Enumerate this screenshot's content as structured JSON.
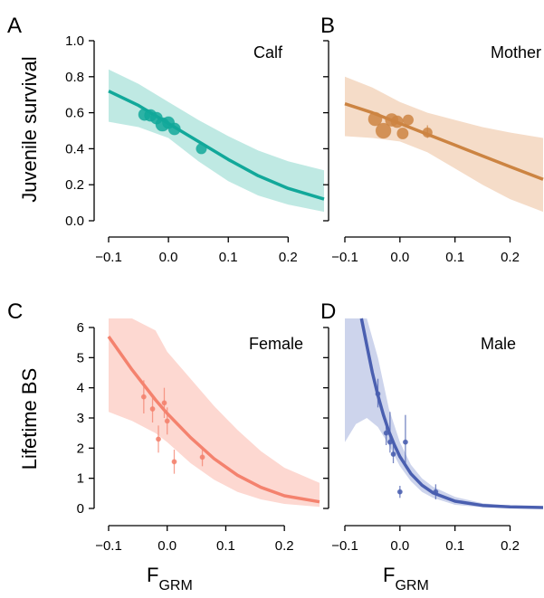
{
  "figure": {
    "ylabel_top": "Juvenile survival",
    "ylabel_bottom": "Lifetime BS",
    "xlabel_main": "F",
    "xlabel_sub": "GRM"
  },
  "chart_data": [
    {
      "panel": "A",
      "title": "Calf",
      "type": "scatter",
      "color": "#12a89a",
      "band_color": "#bfe9e3",
      "xlim": [
        -0.1,
        0.26
      ],
      "ylim": [
        0,
        1.0
      ],
      "xticks": [
        -0.1,
        0.0,
        0.1,
        0.2
      ],
      "xtick_labels": [
        "−0.1",
        "0.0",
        "0.1",
        "0.2"
      ],
      "yticks": [
        0,
        0.2,
        0.4,
        0.6,
        0.8,
        1.0
      ],
      "ytick_labels": [
        "0.0",
        "0.2",
        "0.4",
        "0.6",
        "0.8",
        "1.0"
      ],
      "fit": {
        "x": [
          -0.1,
          -0.05,
          0.0,
          0.05,
          0.1,
          0.15,
          0.2,
          0.26
        ],
        "y": [
          0.72,
          0.64,
          0.54,
          0.44,
          0.34,
          0.25,
          0.18,
          0.12
        ]
      },
      "band": {
        "x": [
          -0.1,
          -0.05,
          0.0,
          0.05,
          0.1,
          0.15,
          0.2,
          0.26
        ],
        "lower": [
          0.55,
          0.52,
          0.46,
          0.33,
          0.22,
          0.14,
          0.09,
          0.05
        ],
        "upper": [
          0.84,
          0.76,
          0.66,
          0.56,
          0.47,
          0.39,
          0.33,
          0.28
        ]
      },
      "points": [
        {
          "x": -0.04,
          "y": 0.59,
          "size": 3
        },
        {
          "x": -0.03,
          "y": 0.585,
          "size": 3
        },
        {
          "x": -0.02,
          "y": 0.57,
          "size": 3
        },
        {
          "x": -0.01,
          "y": 0.535,
          "size": 3.4
        },
        {
          "x": 0.0,
          "y": 0.545,
          "size": 3
        },
        {
          "x": 0.01,
          "y": 0.51,
          "size": 3
        },
        {
          "x": 0.055,
          "y": 0.4,
          "size": 2.6
        }
      ]
    },
    {
      "panel": "B",
      "title": "Mother",
      "type": "scatter",
      "color": "#cc8442",
      "band_color": "#f5dcc8",
      "xlim": [
        -0.1,
        0.26
      ],
      "ylim": [
        0,
        1.0
      ],
      "xticks": [
        -0.1,
        0.0,
        0.1,
        0.2
      ],
      "xtick_labels": [
        "−0.1",
        "0.0",
        "0.1",
        "0.2"
      ],
      "yticks": [
        0,
        0.2,
        0.4,
        0.6,
        0.8,
        1.0
      ],
      "fit": {
        "x": [
          -0.1,
          -0.05,
          0.0,
          0.05,
          0.1,
          0.15,
          0.2,
          0.26
        ],
        "y": [
          0.65,
          0.6,
          0.54,
          0.48,
          0.42,
          0.36,
          0.3,
          0.23
        ]
      },
      "band": {
        "x": [
          -0.1,
          -0.05,
          0.0,
          0.05,
          0.1,
          0.15,
          0.2,
          0.26
        ],
        "lower": [
          0.47,
          0.46,
          0.44,
          0.38,
          0.29,
          0.2,
          0.12,
          0.05
        ],
        "upper": [
          0.8,
          0.74,
          0.66,
          0.6,
          0.56,
          0.52,
          0.49,
          0.46
        ]
      },
      "points": [
        {
          "x": -0.045,
          "y": 0.565,
          "size": 3.4
        },
        {
          "x": -0.03,
          "y": 0.5,
          "size": 3.8
        },
        {
          "x": -0.015,
          "y": 0.56,
          "size": 3.2
        },
        {
          "x": -0.005,
          "y": 0.55,
          "size": 3
        },
        {
          "x": 0.005,
          "y": 0.485,
          "size": 2.8
        },
        {
          "x": 0.015,
          "y": 0.56,
          "size": 2.6
        },
        {
          "x": 0.05,
          "y": 0.49,
          "size": 2.4,
          "err": [
            0.46,
            0.53
          ]
        }
      ]
    },
    {
      "panel": "C",
      "title": "Female",
      "type": "scatter",
      "color": "#f4826e",
      "band_color": "#fdd8d1",
      "xlim": [
        -0.1,
        0.26
      ],
      "ylim": [
        0,
        6
      ],
      "xticks": [
        -0.1,
        0.0,
        0.1,
        0.2
      ],
      "xtick_labels": [
        "−0.1",
        "0.0",
        "0.1",
        "0.2"
      ],
      "yticks": [
        0,
        1,
        2,
        3,
        4,
        5,
        6
      ],
      "ytick_labels": [
        "0",
        "1",
        "2",
        "3",
        "4",
        "5",
        "6"
      ],
      "fit": {
        "x": [
          -0.1,
          -0.06,
          -0.02,
          0.0,
          0.04,
          0.08,
          0.12,
          0.16,
          0.2,
          0.26
        ],
        "y": [
          5.7,
          4.6,
          3.6,
          3.15,
          2.35,
          1.65,
          1.1,
          0.7,
          0.42,
          0.22
        ]
      },
      "band": {
        "x": [
          -0.1,
          -0.06,
          -0.02,
          0.0,
          0.04,
          0.08,
          0.12,
          0.16,
          0.2,
          0.26
        ],
        "lower": [
          3.2,
          2.9,
          2.5,
          2.2,
          1.5,
          0.95,
          0.55,
          0.3,
          0.15,
          0.05
        ],
        "upper": [
          6.3,
          6.3,
          5.9,
          5.2,
          4.3,
          3.4,
          2.6,
          1.9,
          1.35,
          0.85
        ]
      },
      "points": [
        {
          "x": -0.04,
          "y": 3.7,
          "err": [
            3.15,
            4.25
          ]
        },
        {
          "x": -0.025,
          "y": 3.3,
          "err": [
            2.85,
            3.75
          ]
        },
        {
          "x": -0.015,
          "y": 2.3,
          "err": [
            1.85,
            2.75
          ]
        },
        {
          "x": -0.005,
          "y": 3.5,
          "err": [
            3.0,
            4.0
          ]
        },
        {
          "x": 0.0,
          "y": 2.9,
          "err": [
            2.45,
            3.35
          ]
        },
        {
          "x": 0.012,
          "y": 1.55,
          "err": [
            1.15,
            1.95
          ]
        },
        {
          "x": 0.06,
          "y": 1.7,
          "err": [
            1.4,
            2.0
          ]
        }
      ]
    },
    {
      "panel": "D",
      "title": "Male",
      "type": "scatter",
      "color": "#4a5fb0",
      "band_color": "#cdd4ec",
      "xlim": [
        -0.1,
        0.26
      ],
      "ylim": [
        0,
        6
      ],
      "xticks": [
        -0.1,
        0.0,
        0.1,
        0.2
      ],
      "xtick_labels": [
        "−0.1",
        "0.0",
        "0.1",
        "0.2"
      ],
      "yticks": [
        0,
        1,
        2,
        3,
        4,
        5,
        6
      ],
      "fit": {
        "x": [
          -0.07,
          -0.06,
          -0.05,
          -0.04,
          -0.03,
          -0.02,
          -0.01,
          0.0,
          0.02,
          0.04,
          0.06,
          0.1,
          0.15,
          0.2,
          0.26
        ],
        "y": [
          6.3,
          5.4,
          4.5,
          3.75,
          3.1,
          2.55,
          2.1,
          1.72,
          1.15,
          0.77,
          0.52,
          0.24,
          0.1,
          0.05,
          0.03
        ]
      },
      "band": {
        "x": [
          -0.1,
          -0.09,
          -0.08,
          -0.06,
          -0.04,
          -0.02,
          0.0,
          0.02,
          0.04,
          0.06,
          0.1,
          0.15,
          0.2,
          0.26
        ],
        "lower": [
          2.2,
          2.5,
          2.8,
          3.0,
          2.7,
          2.1,
          1.4,
          0.9,
          0.55,
          0.35,
          0.12,
          0.04,
          0.02,
          0.01
        ],
        "upper": [
          6.3,
          6.3,
          6.3,
          6.3,
          5.0,
          3.3,
          2.2,
          1.45,
          1.0,
          0.72,
          0.38,
          0.17,
          0.09,
          0.06
        ]
      },
      "points": [
        {
          "x": -0.04,
          "y": 3.8,
          "err": [
            3.35,
            4.3
          ]
        },
        {
          "x": -0.025,
          "y": 2.5,
          "err": [
            2.1,
            2.95
          ]
        },
        {
          "x": -0.018,
          "y": 2.2,
          "err": [
            1.85,
            3.2
          ]
        },
        {
          "x": -0.012,
          "y": 1.8,
          "err": [
            1.5,
            2.15
          ]
        },
        {
          "x": 0.0,
          "y": 0.55,
          "err": [
            0.35,
            0.75
          ]
        },
        {
          "x": 0.01,
          "y": 2.2,
          "err": [
            1.45,
            3.1
          ]
        },
        {
          "x": 0.065,
          "y": 0.55,
          "err": [
            0.3,
            0.8
          ]
        }
      ]
    }
  ]
}
